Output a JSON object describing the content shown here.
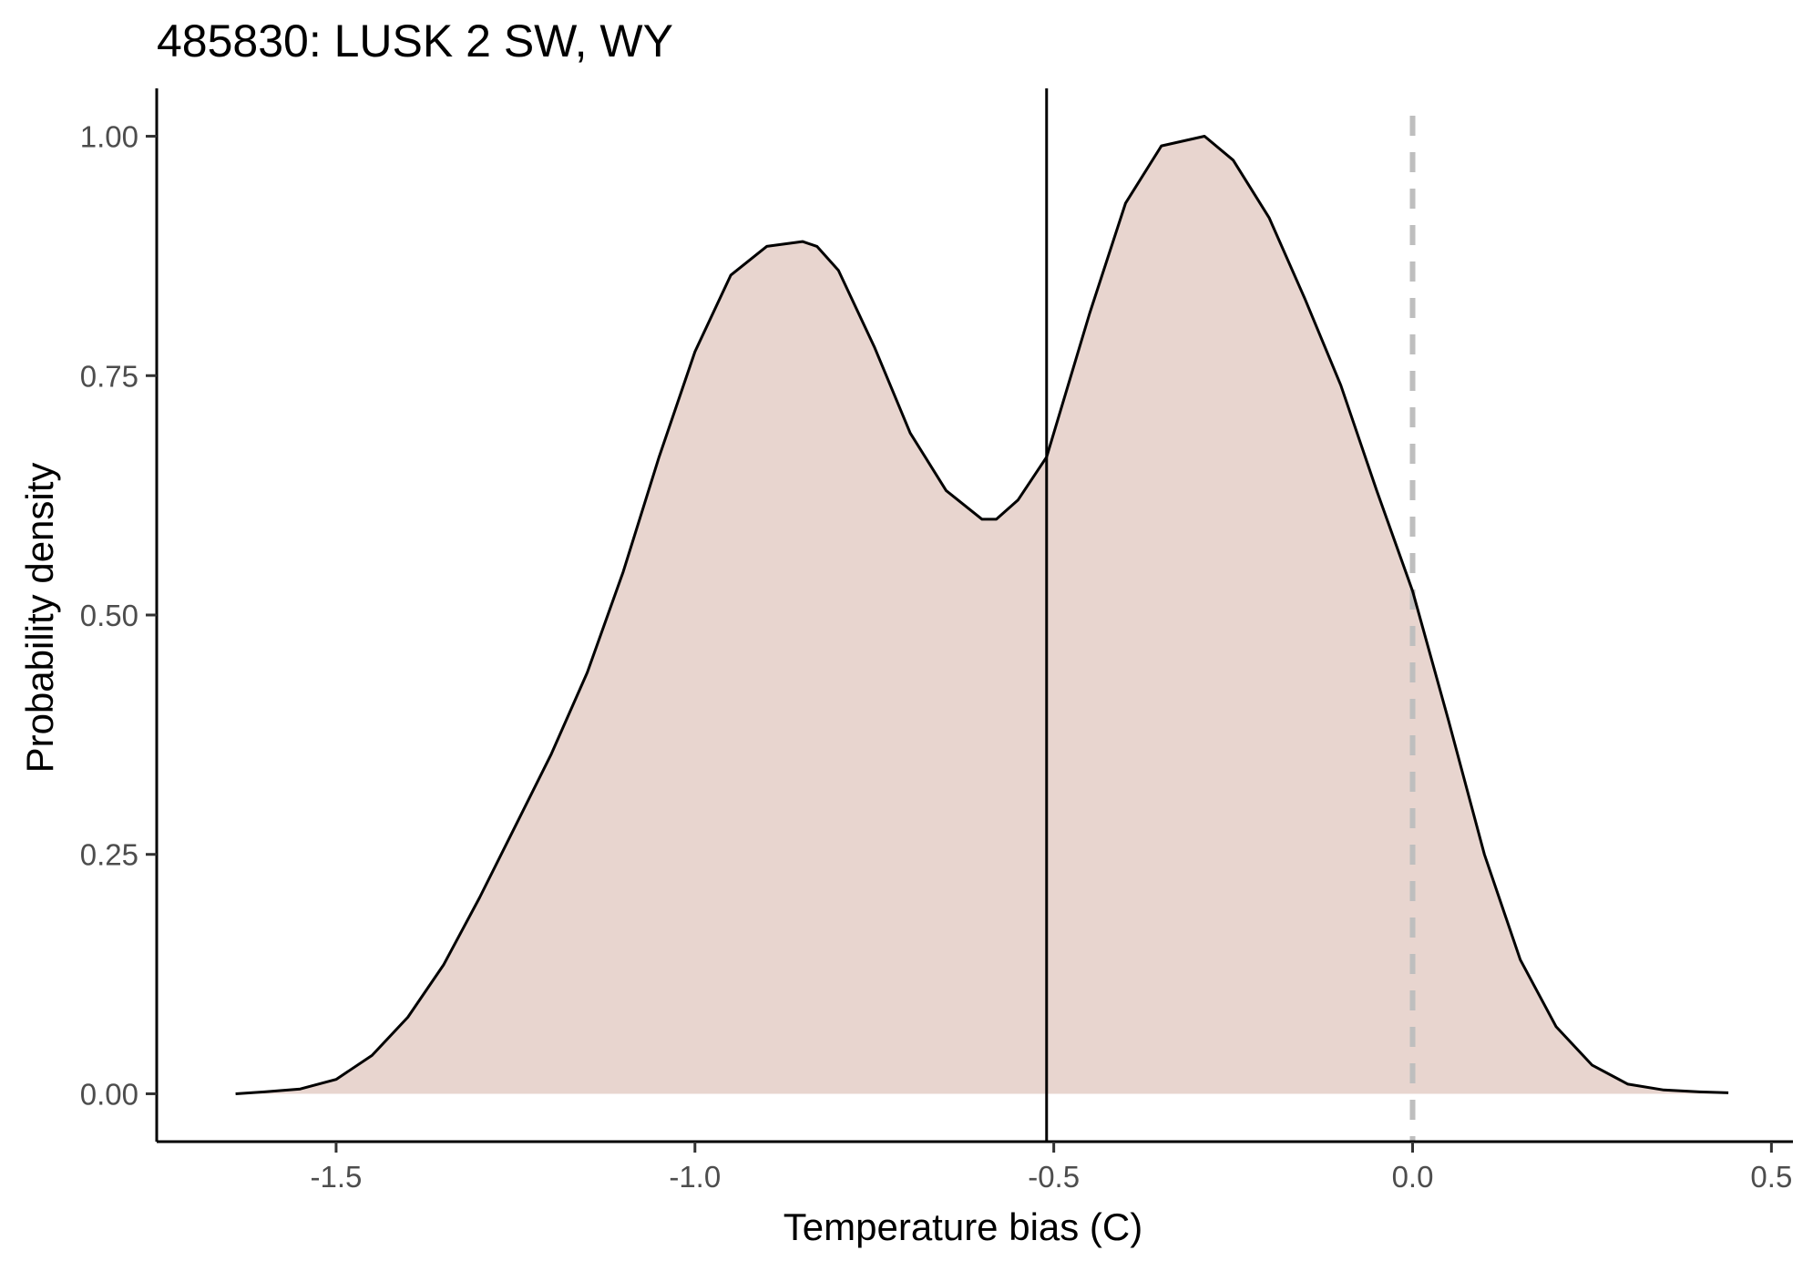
{
  "chart_data": {
    "type": "area",
    "title": "485830: LUSK 2 SW, WY",
    "xlabel": "Temperature bias (C)",
    "ylabel": "Probability density",
    "xlim": [
      -1.75,
      0.53
    ],
    "ylim": [
      -0.05,
      1.05
    ],
    "x_ticks": [
      -1.5,
      -1.0,
      -0.5,
      0.0,
      0.5
    ],
    "x_tick_labels": [
      "-1.5",
      "-1.0",
      "-0.5",
      "0.0",
      "0.5"
    ],
    "y_ticks": [
      0.0,
      0.25,
      0.5,
      0.75,
      1.0
    ],
    "y_tick_labels": [
      "0.00",
      "0.25",
      "0.50",
      "0.75",
      "1.00"
    ],
    "grid": false,
    "legend": "none",
    "fill_color": "#e8d5cf",
    "line_color": "#000000",
    "reference_lines": [
      {
        "x": -0.51,
        "style": "solid",
        "color": "#000000"
      },
      {
        "x": 0.0,
        "style": "dashed",
        "color": "#bebebe"
      }
    ],
    "series": [
      {
        "x": [
          -1.64,
          -1.6,
          -1.55,
          -1.5,
          -1.45,
          -1.4,
          -1.35,
          -1.3,
          -1.25,
          -1.2,
          -1.15,
          -1.1,
          -1.05,
          -1.0,
          -0.95,
          -0.9,
          -0.85,
          -0.83,
          -0.8,
          -0.75,
          -0.7,
          -0.65,
          -0.6,
          -0.58,
          -0.55,
          -0.51,
          -0.45,
          -0.4,
          -0.35,
          -0.29,
          -0.25,
          -0.2,
          -0.15,
          -0.1,
          -0.05,
          0.0,
          0.05,
          0.1,
          0.15,
          0.2,
          0.25,
          0.3,
          0.35,
          0.4,
          0.44
        ],
        "y": [
          0.0,
          0.002,
          0.005,
          0.015,
          0.04,
          0.08,
          0.135,
          0.205,
          0.28,
          0.355,
          0.44,
          0.545,
          0.665,
          0.775,
          0.855,
          0.885,
          0.89,
          0.885,
          0.86,
          0.78,
          0.69,
          0.63,
          0.6,
          0.6,
          0.62,
          0.665,
          0.815,
          0.93,
          0.99,
          1.0,
          0.975,
          0.915,
          0.83,
          0.74,
          0.63,
          0.525,
          0.39,
          0.25,
          0.14,
          0.07,
          0.03,
          0.01,
          0.004,
          0.002,
          0.001
        ]
      }
    ]
  }
}
